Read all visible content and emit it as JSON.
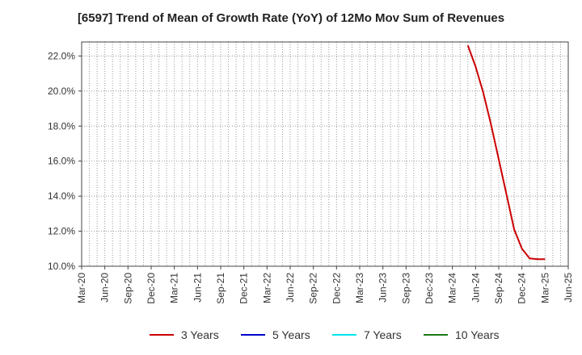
{
  "chart_data": {
    "type": "line",
    "title": "[6597]  Trend of Mean of Growth Rate (YoY) of 12Mo Mov Sum of Revenues",
    "xlabel": "",
    "ylabel": "",
    "x_tick_labels": [
      "Mar-20",
      "Jun-20",
      "Sep-20",
      "Dec-20",
      "Mar-21",
      "Jun-21",
      "Sep-21",
      "Dec-21",
      "Mar-22",
      "Jun-22",
      "Sep-22",
      "Dec-22",
      "Mar-23",
      "Jun-23",
      "Sep-23",
      "Dec-23",
      "Mar-24",
      "Jun-24",
      "Sep-24",
      "Dec-24",
      "Mar-25",
      "Jun-25"
    ],
    "y_tick_labels": [
      "10.0%",
      "12.0%",
      "14.0%",
      "16.0%",
      "18.0%",
      "20.0%",
      "22.0%"
    ],
    "y_ticks": [
      10,
      12,
      14,
      16,
      18,
      20,
      22
    ],
    "ylim": [
      10,
      22.8
    ],
    "xlim": [
      "2020-03",
      "2025-06"
    ],
    "grid": true,
    "legend_position": "bottom",
    "series": [
      {
        "name": "3 Years",
        "color": "#cc0000",
        "x": [
          "2024-05",
          "2024-06",
          "2024-07",
          "2024-08",
          "2024-09",
          "2024-10",
          "2024-11",
          "2024-12",
          "2025-01",
          "2025-02",
          "2025-03"
        ],
        "values": [
          22.6,
          21.4,
          19.9,
          18.1,
          16.1,
          14.1,
          12.1,
          11.0,
          10.45,
          10.4,
          10.4
        ]
      },
      {
        "name": "5 Years",
        "color": "#0000cc",
        "x": [],
        "values": []
      },
      {
        "name": "7 Years",
        "color": "#00e5ee",
        "x": [],
        "values": []
      },
      {
        "name": "10 Years",
        "color": "#1a7a1a",
        "x": [],
        "values": []
      }
    ]
  }
}
